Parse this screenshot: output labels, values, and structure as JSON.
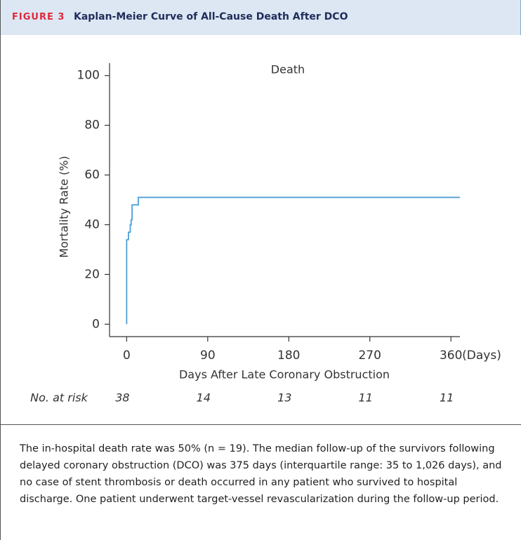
{
  "figure_label": "FIGURE 3",
  "figure_title": "Kaplan-Meier Curve of All-Cause Death After DCO",
  "caption": "The in-hospital death rate was 50% (n = 19). The median follow-up of the survivors following delayed coronary obstruction (DCO) was 375 days (interquartile range: 35 to 1,026 days), and no case of stent thrombosis or death occurred in any patient who survived to hospital discharge. One patient underwent target-vessel revascularization during the follow-up period.",
  "chart_data": {
    "type": "step",
    "title": "Death",
    "x_label": "Days After Late Coronary Obstruction",
    "x_unit": "(Days)",
    "y_label": "Mortality Rate (%)",
    "x": [
      0,
      0,
      2,
      4,
      5,
      6,
      13,
      370
    ],
    "values": [
      0,
      34,
      37,
      40,
      42,
      48,
      51,
      51
    ],
    "color": "#4f9fd6",
    "xlim": [
      -19,
      370
    ],
    "ylim": [
      -5,
      105
    ],
    "xticks": [
      0,
      90,
      180,
      270,
      360
    ],
    "yticks": [
      0,
      20,
      40,
      60,
      80,
      100
    ],
    "at_risk": {
      "label": "No. at risk",
      "values": [
        38,
        14,
        13,
        11,
        11
      ]
    }
  }
}
